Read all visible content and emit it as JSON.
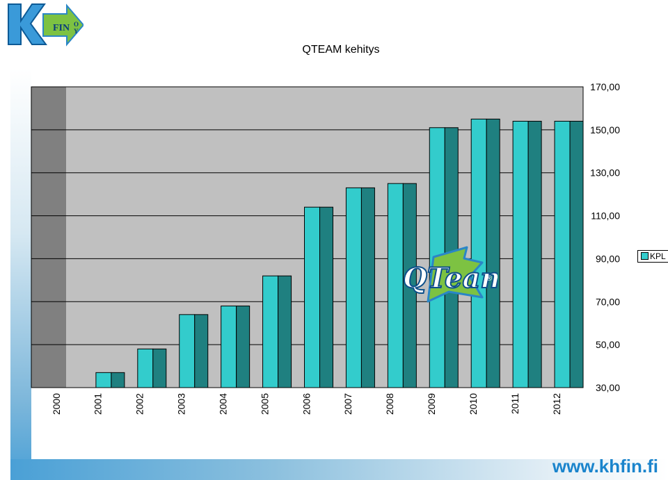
{
  "logo": {
    "word": "FIN",
    "letters": [
      "O",
      "Y"
    ]
  },
  "watermark": {
    "brand": "QTeam",
    "mark": "®"
  },
  "footer": {
    "url": "www.khfin.fi"
  },
  "colors": {
    "bar": "#33CCCC",
    "bar_side": "#1F8080",
    "plot_bg": "#C0C0C0",
    "wall": "#808080",
    "url": "#1A84CC"
  },
  "chart_data": {
    "type": "bar",
    "title": "QTEAM kehitys",
    "categories": [
      "2000",
      "2001",
      "2002",
      "2003",
      "2004",
      "2005",
      "2006",
      "2007",
      "2008",
      "2009",
      "2010",
      "2011",
      "2012"
    ],
    "series": [
      {
        "name": "KPL",
        "values": [
          null,
          37,
          48,
          64,
          68,
          82,
          114,
          123,
          125,
          151,
          155,
          154,
          154
        ]
      }
    ],
    "y_ticks": [
      "30,00",
      "50,00",
      "70,00",
      "90,00",
      "110,00",
      "130,00",
      "150,00",
      "170,00"
    ],
    "ylim": [
      30,
      170
    ],
    "grid": true,
    "legend": "right",
    "y_axis_side": "right"
  }
}
